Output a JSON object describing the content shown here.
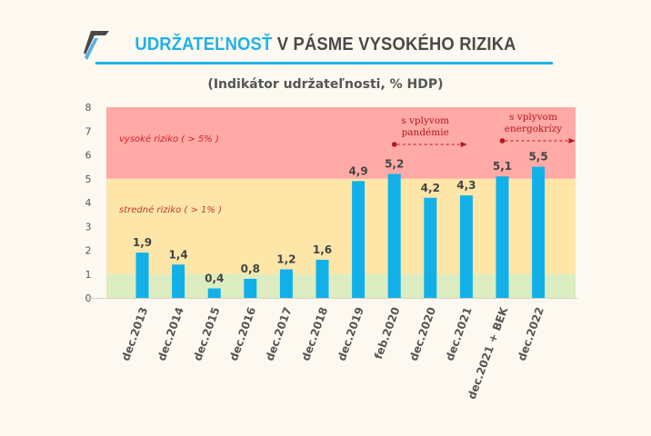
{
  "header": {
    "title_accent": "UDRŽATEĽNOSŤ",
    "title_rest": " V PÁSME VYSOKÉHO RIZIKA",
    "subtitle": "(Indikátor udržateľnosti, % HDP)"
  },
  "colors": {
    "accent": "#1fb1e6",
    "bar": "#12b0e8",
    "band_high": "#ffaaa6",
    "band_medium": "#fde6a8",
    "band_low": "#dcedc1",
    "annotation": "#b5171e",
    "title_dark": "#4a4a4a"
  },
  "chart_data": {
    "type": "bar",
    "title": "UDRŽATEĽNOSŤ V PÁSME VYSOKÉHO RIZIKA",
    "subtitle": "(Indikátor udržateľnosti, % HDP)",
    "xlabel": "",
    "ylabel": "",
    "ylim": [
      0,
      8
    ],
    "yticks": [
      0,
      1,
      2,
      3,
      4,
      5,
      6,
      7,
      8
    ],
    "grid": false,
    "categories": [
      "dec.2013",
      "dec.2014",
      "dec.2015",
      "dec.2016",
      "dec.2017",
      "dec.2018",
      "dec.2019",
      "feb.2020",
      "dec.2020",
      "dec.2021",
      "dec.2021 + BEK",
      "dec.2022"
    ],
    "values": [
      1.9,
      1.4,
      0.4,
      0.8,
      1.2,
      1.6,
      4.9,
      5.2,
      4.2,
      4.3,
      5.1,
      5.5
    ],
    "value_labels": [
      "1,9",
      "1,4",
      "0,4",
      "0,8",
      "1,2",
      "1,6",
      "4,9",
      "5,2",
      "4,2",
      "4,3",
      "5,1",
      "5,5"
    ],
    "bands": [
      {
        "name": "low",
        "from": 0,
        "to": 1,
        "label": ""
      },
      {
        "name": "medium",
        "from": 1,
        "to": 5,
        "label": "stredné riziko ( > 1% )"
      },
      {
        "name": "high",
        "from": 5,
        "to": 8,
        "label": "vysoké riziko ( > 5% )"
      }
    ],
    "annotations": [
      {
        "text_lines": [
          "s vplyvom",
          "pandémie"
        ],
        "from_category": "feb.2020",
        "arrow": "right"
      },
      {
        "text_lines": [
          "s vplyvom",
          "energokrízy"
        ],
        "from_category": "dec.2021 + BEK",
        "arrow": "right"
      }
    ]
  }
}
